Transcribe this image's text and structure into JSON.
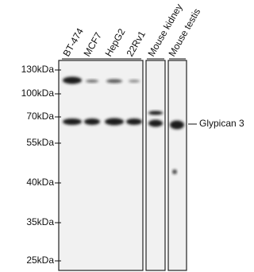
{
  "lanes": [
    "BT-474",
    "MCF7",
    "HepG2",
    "22Rv1",
    "Mouse kidney",
    "Mouse testis"
  ],
  "markers": [
    "130kDa",
    "100kDa",
    "70kDa",
    "55kDa",
    "40kDa",
    "35kDa",
    "25kDa"
  ],
  "target": "Glypican 3"
}
